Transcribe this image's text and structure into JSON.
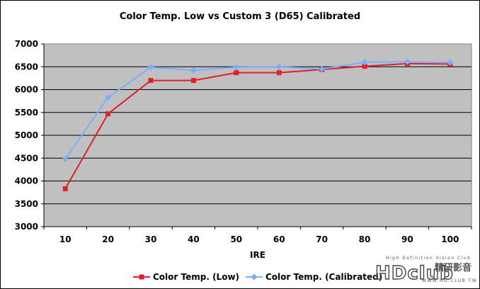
{
  "chart_data": {
    "type": "line",
    "title": "Color Temp. Low vs Custom 3 (D65) Calibrated",
    "xlabel": "IRE",
    "ylabel": "",
    "categories": [
      "10",
      "20",
      "30",
      "40",
      "50",
      "60",
      "70",
      "80",
      "90",
      "100"
    ],
    "ylim": [
      3000,
      7000
    ],
    "yticks": [
      3000,
      3500,
      4000,
      4500,
      5000,
      5500,
      6000,
      6500,
      7000
    ],
    "grid": true,
    "legend_position": "bottom",
    "series": [
      {
        "name": "Color Temp. (Low)",
        "color": "#e0202a",
        "marker": "square",
        "values": [
          3830,
          5470,
          6200,
          6200,
          6370,
          6370,
          6440,
          6510,
          6570,
          6560
        ]
      },
      {
        "name": "Color Temp. (Calibrated)",
        "color": "#7aaeff",
        "marker": "diamond",
        "values": [
          4480,
          5830,
          6490,
          6420,
          6490,
          6500,
          6450,
          6600,
          6610,
          6590
        ]
      }
    ]
  },
  "watermark": {
    "tagline": "High Definition Vision Club",
    "logo_text": "HDclub",
    "cjk_text": "精研影音",
    "url": "WWW.HD.CLUB.TW"
  }
}
